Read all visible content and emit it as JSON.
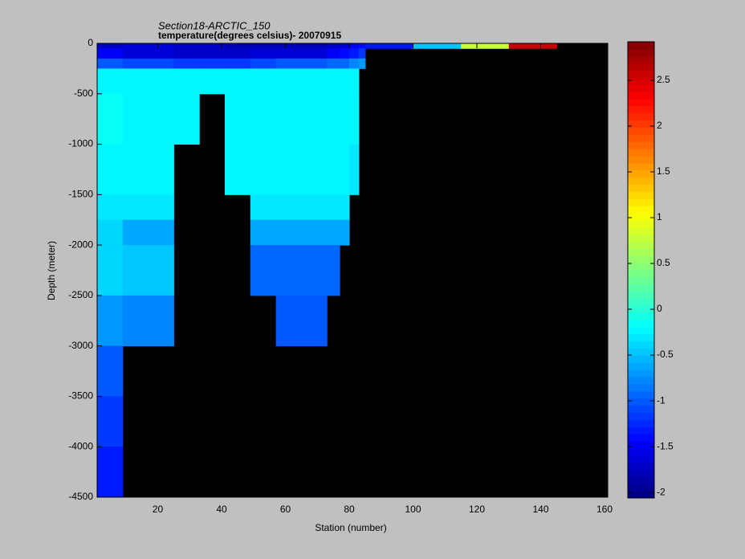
{
  "chart_data": {
    "type": "heatmap",
    "title": "Section18-ARCTIC_150",
    "subtitle": "temperature(degrees celsius)- 20070915",
    "x_label": "Station (number)",
    "y_label": "Depth (meter)",
    "xlim": [
      1,
      161
    ],
    "ylim": [
      -4500,
      0
    ],
    "xticks": [
      20,
      40,
      60,
      80,
      100,
      120,
      140,
      160
    ],
    "yticks": [
      0,
      -500,
      -1000,
      -1500,
      -2000,
      -2500,
      -3000,
      -3500,
      -4000,
      -4500
    ],
    "xbins": [
      1,
      9,
      25,
      33,
      41,
      49,
      57,
      73,
      77,
      80,
      83,
      85,
      100,
      115,
      130,
      145,
      161
    ],
    "ybins": [
      0,
      -50,
      -150,
      -250,
      -500,
      -1000,
      -1500,
      -1750,
      -2000,
      -2500,
      -3000,
      -3500,
      -4000,
      -4500
    ],
    "values": [
      [
        -1.7,
        -1.6,
        -1.7,
        -1.7,
        -1.8,
        -1.8,
        -1.8,
        -1.7,
        -1.6,
        -1.5,
        -1.4,
        -1.3,
        -0.5,
        0.8,
        2.6,
        null
      ],
      [
        -1.5,
        -1.6,
        -1.7,
        -1.7,
        -1.7,
        -1.6,
        -1.6,
        -1.5,
        -1.4,
        -1.3,
        -1.2,
        null,
        null,
        null,
        null,
        null
      ],
      [
        -1.0,
        -1.1,
        -1.2,
        -1.2,
        -1.2,
        -1.1,
        -1.0,
        -0.9,
        -0.9,
        -0.8,
        -0.7,
        null,
        null,
        null,
        null,
        null
      ],
      [
        -0.2,
        -0.2,
        -0.25,
        -0.25,
        -0.2,
        -0.2,
        -0.2,
        -0.2,
        -0.25,
        -0.25,
        null,
        null,
        null,
        null,
        null,
        null
      ],
      [
        -0.15,
        -0.2,
        -0.2,
        null,
        -0.2,
        -0.2,
        -0.2,
        -0.2,
        -0.2,
        -0.25,
        null,
        null,
        null,
        null,
        null,
        null
      ],
      [
        -0.2,
        -0.25,
        null,
        null,
        -0.25,
        -0.25,
        -0.25,
        -0.25,
        -0.25,
        -0.3,
        null,
        null,
        null,
        null,
        null,
        null
      ],
      [
        -0.3,
        -0.3,
        null,
        null,
        null,
        -0.3,
        -0.3,
        -0.3,
        -0.3,
        null,
        null,
        null,
        null,
        null,
        null,
        null
      ],
      [
        -0.35,
        -0.6,
        null,
        null,
        null,
        -0.6,
        -0.6,
        -0.6,
        -0.6,
        null,
        null,
        null,
        null,
        null,
        null,
        null
      ],
      [
        -0.4,
        -0.45,
        null,
        null,
        null,
        -0.9,
        -0.9,
        -0.9,
        null,
        null,
        null,
        null,
        null,
        null,
        null,
        null
      ],
      [
        -0.7,
        -0.75,
        null,
        null,
        null,
        null,
        -1.0,
        null,
        null,
        null,
        null,
        null,
        null,
        null,
        null,
        null
      ],
      [
        -1.0,
        null,
        null,
        null,
        null,
        null,
        null,
        null,
        null,
        null,
        null,
        null,
        null,
        null,
        null,
        null
      ],
      [
        -1.2,
        null,
        null,
        null,
        null,
        null,
        null,
        null,
        null,
        null,
        null,
        null,
        null,
        null,
        null,
        null
      ],
      [
        -1.35,
        null,
        null,
        null,
        null,
        null,
        null,
        null,
        null,
        null,
        null,
        null,
        null,
        null,
        null,
        null
      ]
    ],
    "colormap": "jet",
    "missing_color": "#000000",
    "clim": [
      -2.06,
      2.92
    ],
    "cticks": [
      -2,
      -1.5,
      -1,
      -0.5,
      0,
      0.5,
      1,
      1.5,
      2,
      2.5
    ]
  }
}
